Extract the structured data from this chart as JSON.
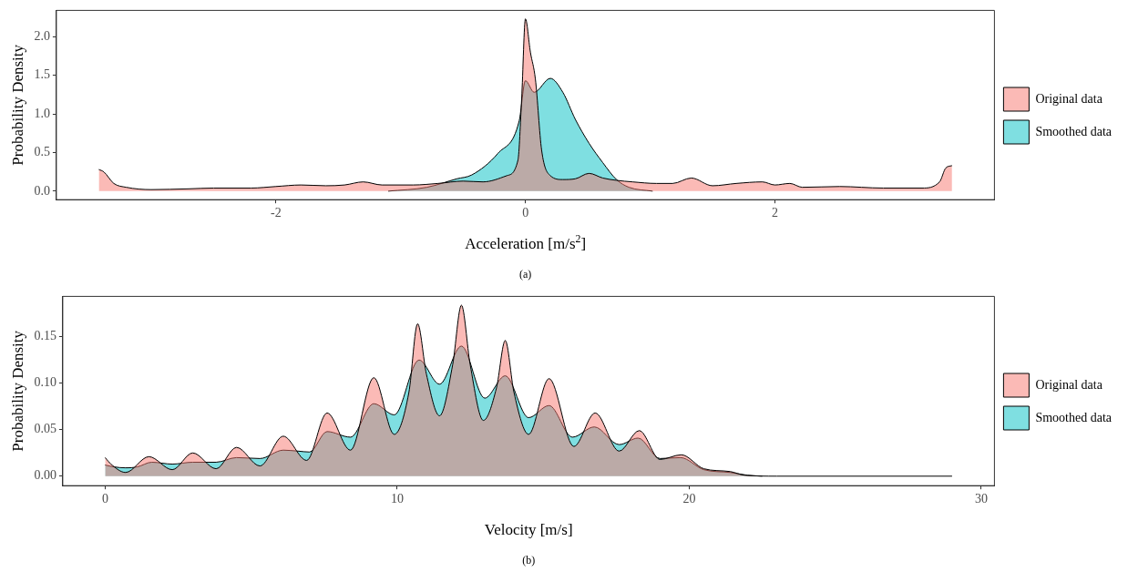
{
  "chart_data": [
    {
      "type": "area",
      "xlabel": "Acceleration [m/s$^{2}$]",
      "ylabel": "Probability Density",
      "annotations": [
        "(a)"
      ],
      "legend": "right",
      "xlim": [
        -3.76,
        3.76
      ],
      "xticks": [
        -2,
        0,
        2
      ],
      "ylim": [
        -0.11,
        2.34
      ],
      "yticks": [
        {
          "value": 0,
          "label": "0.0"
        },
        {
          "value": 0.5,
          "label": "0.5"
        },
        {
          "value": 1,
          "label": "1.0"
        },
        {
          "value": 1.5,
          "label": "1.5"
        },
        {
          "value": 2,
          "label": "2.0"
        }
      ],
      "series": [
        {
          "name": "Original data",
          "color": "#f8766d",
          "x": [
            -3.42,
            -3.38,
            -3.3,
            -3.2,
            -3.0,
            -2.7,
            -2.5,
            -2.2,
            -2.0,
            -1.8,
            -1.6,
            -1.45,
            -1.3,
            -1.15,
            -0.9,
            -0.7,
            -0.5,
            -0.34,
            -0.15,
            -0.06,
            -0.03,
            0.0,
            0.04,
            0.08,
            0.13,
            0.2,
            0.3,
            0.4,
            0.51,
            0.62,
            0.73,
            0.86,
            1.05,
            1.18,
            1.33,
            1.5,
            1.69,
            1.9,
            2.0,
            2.12,
            2.22,
            2.52,
            2.87,
            3.18,
            3.32,
            3.37,
            3.42
          ],
          "values": [
            0.28,
            0.25,
            0.1,
            0.05,
            0.02,
            0.03,
            0.04,
            0.04,
            0.06,
            0.08,
            0.07,
            0.08,
            0.12,
            0.08,
            0.08,
            0.1,
            0.13,
            0.12,
            0.2,
            0.4,
            1.2,
            2.23,
            1.8,
            1.45,
            0.53,
            0.2,
            0.15,
            0.16,
            0.23,
            0.17,
            0.14,
            0.12,
            0.1,
            0.1,
            0.17,
            0.07,
            0.1,
            0.12,
            0.08,
            0.1,
            0.05,
            0.06,
            0.04,
            0.04,
            0.12,
            0.3,
            0.33
          ]
        },
        {
          "name": "Smoothed data",
          "color": "#00bfc4",
          "x": [
            -1.1,
            -0.79,
            -0.55,
            -0.43,
            -0.22,
            -0.05,
            0.0,
            0.07,
            0.2,
            0.3,
            0.4,
            0.51,
            0.62,
            0.73,
            0.83,
            1.02
          ],
          "values": [
            0,
            0.05,
            0.16,
            0.21,
            0.49,
            0.91,
            1.43,
            1.28,
            1.46,
            1.28,
            0.93,
            0.62,
            0.37,
            0.15,
            0.05,
            0
          ]
        }
      ]
    },
    {
      "type": "area",
      "xlabel": "Velocity [m/s]",
      "ylabel": "Probability Density",
      "annotations": [
        "(b)"
      ],
      "legend": "right",
      "xlim": [
        -1.45,
        30.45
      ],
      "xticks": [
        0,
        10,
        20,
        30
      ],
      "ylim": [
        -0.0102,
        0.1935
      ],
      "yticks": [
        {
          "value": 0,
          "label": "0.00"
        },
        {
          "value": 0.05,
          "label": "0.05"
        },
        {
          "value": 0.1,
          "label": "0.10"
        },
        {
          "value": 0.15,
          "label": "0.15"
        }
      ],
      "series": [
        {
          "name": "Original data",
          "color": "#f8766d",
          "x": [
            0,
            0.2,
            0.7,
            1.5,
            2.3,
            3.0,
            3.8,
            4.5,
            5.3,
            6.1,
            6.9,
            7.6,
            8.4,
            9.2,
            9.9,
            10.4,
            10.7,
            11.0,
            11.45,
            11.9,
            12.2,
            12.5,
            12.95,
            13.4,
            13.7,
            14.0,
            14.5,
            15.2,
            16.05,
            16.78,
            17.6,
            18.29,
            19.0,
            19.73,
            20.5,
            21.4,
            21.9,
            23,
            29
          ],
          "values": [
            0.02,
            0.013,
            0.004,
            0.021,
            0.007,
            0.025,
            0.008,
            0.031,
            0.011,
            0.043,
            0.017,
            0.068,
            0.028,
            0.106,
            0.045,
            0.09,
            0.164,
            0.11,
            0.065,
            0.12,
            0.184,
            0.12,
            0.06,
            0.095,
            0.146,
            0.09,
            0.045,
            0.105,
            0.032,
            0.068,
            0.027,
            0.049,
            0.018,
            0.023,
            0.008,
            0.005,
            0.001,
            0,
            0
          ]
        },
        {
          "name": "Smoothed data",
          "color": "#00bfc4",
          "x": [
            0,
            0.3,
            0.7,
            1.1,
            1.6,
            2.3,
            3.0,
            3.8,
            4.5,
            5.3,
            6.1,
            6.6,
            7.0,
            7.6,
            8.4,
            9.2,
            9.9,
            10.75,
            11.45,
            12.2,
            13.0,
            13.7,
            14.5,
            15.2,
            16.0,
            16.75,
            17.6,
            18.25,
            19.0,
            19.7,
            20.5,
            21.4,
            22.0,
            22.5
          ],
          "values": [
            0.012,
            0.01,
            0.009,
            0.01,
            0.015,
            0.013,
            0.015,
            0.015,
            0.02,
            0.019,
            0.028,
            0.027,
            0.026,
            0.048,
            0.042,
            0.078,
            0.066,
            0.125,
            0.099,
            0.14,
            0.084,
            0.108,
            0.063,
            0.076,
            0.042,
            0.053,
            0.034,
            0.041,
            0.019,
            0.02,
            0.007,
            0.004,
            0.001,
            0
          ]
        }
      ]
    }
  ]
}
